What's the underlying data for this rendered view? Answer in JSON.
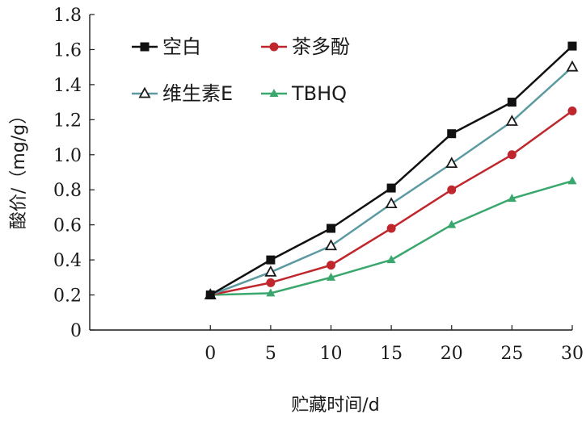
{
  "chart_data": {
    "type": "line",
    "xlabel": "贮藏时间/d",
    "ylabel": "酸价/（mg/g）",
    "x": [
      0,
      5,
      10,
      15,
      20,
      25,
      30
    ],
    "xlim": [
      -10,
      30
    ],
    "ylim": [
      0,
      1.8
    ],
    "xticks": [
      "0",
      "5",
      "10",
      "15",
      "20",
      "25",
      "30"
    ],
    "yticks": [
      "0",
      "0.2",
      "0.4",
      "0.6",
      "0.8",
      "1.0",
      "1.2",
      "1.4",
      "1.6",
      "1.8"
    ],
    "grid": false,
    "legend_position": "top-left",
    "series": [
      {
        "name": "空白",
        "color": "#111111",
        "marker": "square-filled",
        "values": [
          0.2,
          0.4,
          0.58,
          0.81,
          1.12,
          1.3,
          1.62
        ]
      },
      {
        "name": "茶多酚",
        "color": "#c0272d",
        "marker": "circle-filled",
        "values": [
          0.2,
          0.27,
          0.37,
          0.58,
          0.8,
          1.0,
          1.25
        ]
      },
      {
        "name": "维生素E",
        "color": "#5b9aa0",
        "marker": "triangle-open",
        "values": [
          0.2,
          0.33,
          0.48,
          0.72,
          0.95,
          1.19,
          1.5
        ]
      },
      {
        "name": "TBHQ",
        "color": "#3aa76d",
        "marker": "triangle-filled",
        "values": [
          0.2,
          0.21,
          0.3,
          0.4,
          0.6,
          0.75,
          0.85
        ]
      }
    ]
  }
}
